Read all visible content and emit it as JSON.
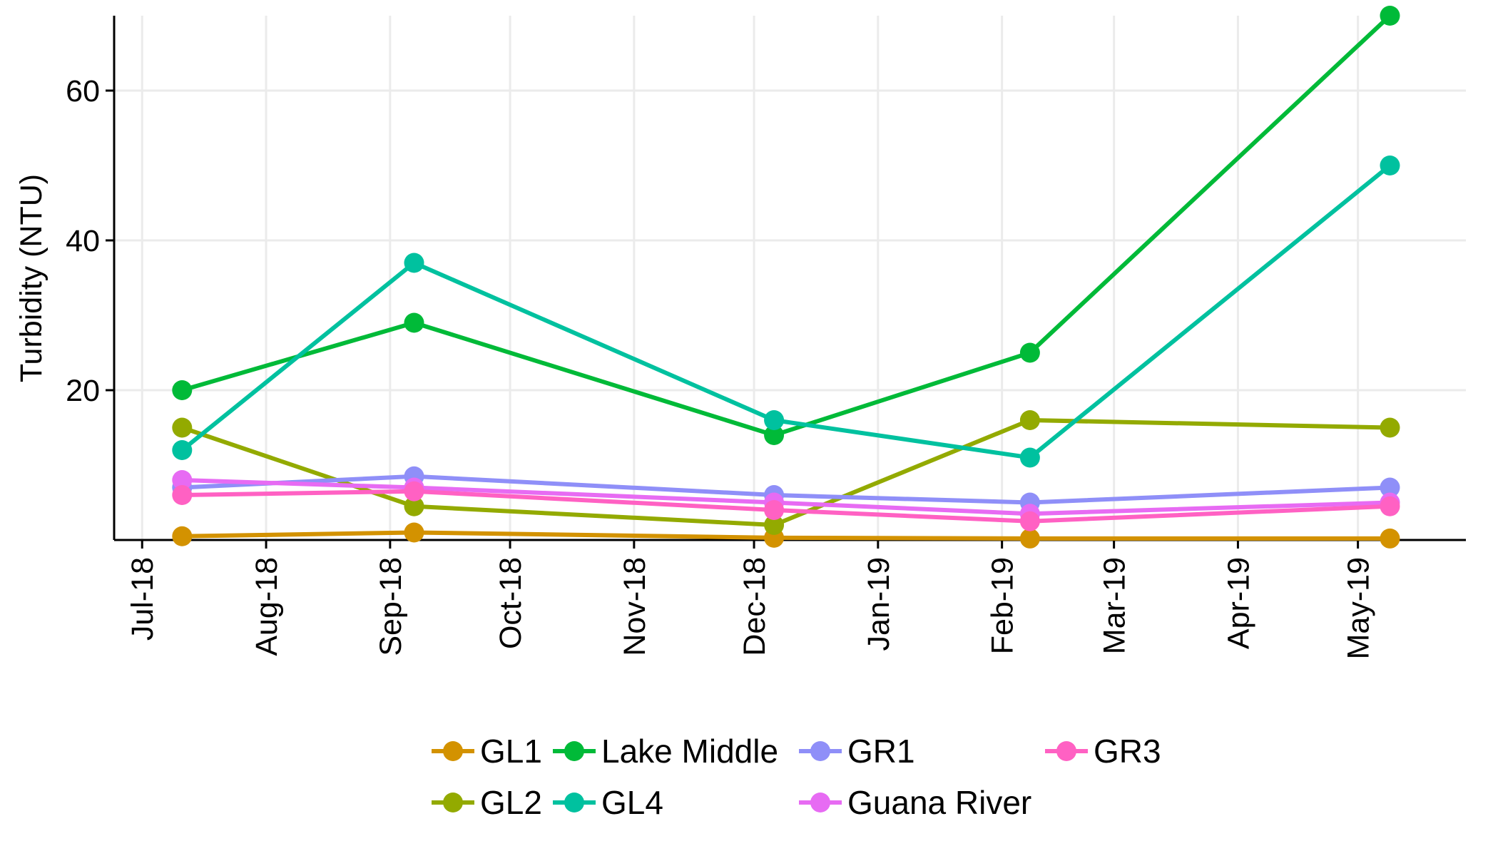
{
  "chart_data": {
    "type": "line",
    "ylabel": "Turbidity (NTU)",
    "xlabel": "",
    "ylim": [
      0,
      70
    ],
    "y_ticks": [
      20,
      40,
      60
    ],
    "x_ticks": [
      "2018-07-01",
      "2018-08-01",
      "2018-09-01",
      "2018-10-01",
      "2018-11-01",
      "2018-12-01",
      "2019-01-01",
      "2019-02-01",
      "2019-03-01",
      "2019-04-01",
      "2019-05-01"
    ],
    "x_tick_labels": [
      "Jul-18",
      "Aug-18",
      "Sep-18",
      "Oct-18",
      "Nov-18",
      "Dec-18",
      "Jan-19",
      "Feb-19",
      "Mar-19",
      "Apr-19",
      "May-19"
    ],
    "xlim": [
      "2018-06-24",
      "2019-05-28"
    ],
    "x": [
      "2018-07-11",
      "2018-09-07",
      "2018-12-06",
      "2019-02-08",
      "2019-05-09"
    ],
    "grid": true,
    "legend_position": "bottom",
    "series": [
      {
        "name": "GL1",
        "color": "#D39200",
        "values": [
          0.5,
          1.0,
          0.3,
          0.2,
          0.2
        ]
      },
      {
        "name": "GL2",
        "color": "#93AA00",
        "values": [
          15,
          4.5,
          2.0,
          16,
          15
        ]
      },
      {
        "name": "Lake Middle",
        "color": "#00BA38",
        "values": [
          20,
          29,
          14,
          25,
          70
        ]
      },
      {
        "name": "GL4",
        "color": "#00C19F",
        "values": [
          12,
          37,
          16,
          11,
          50
        ]
      },
      {
        "name": "GR1",
        "color": "#8F8FF8",
        "values": [
          7,
          8.5,
          6,
          5,
          7
        ]
      },
      {
        "name": "Guana River",
        "color": "#E76BF3",
        "values": [
          8,
          7,
          5,
          3.5,
          5
        ]
      },
      {
        "name": "GR3",
        "color": "#FF61C3",
        "values": [
          6,
          6.5,
          4,
          2.5,
          4.5
        ]
      }
    ]
  },
  "legend": {
    "rows": [
      [
        "GL1",
        "Lake Middle",
        "GR1",
        "GR3"
      ],
      [
        "GL2",
        "GL4",
        "Guana River"
      ]
    ]
  }
}
